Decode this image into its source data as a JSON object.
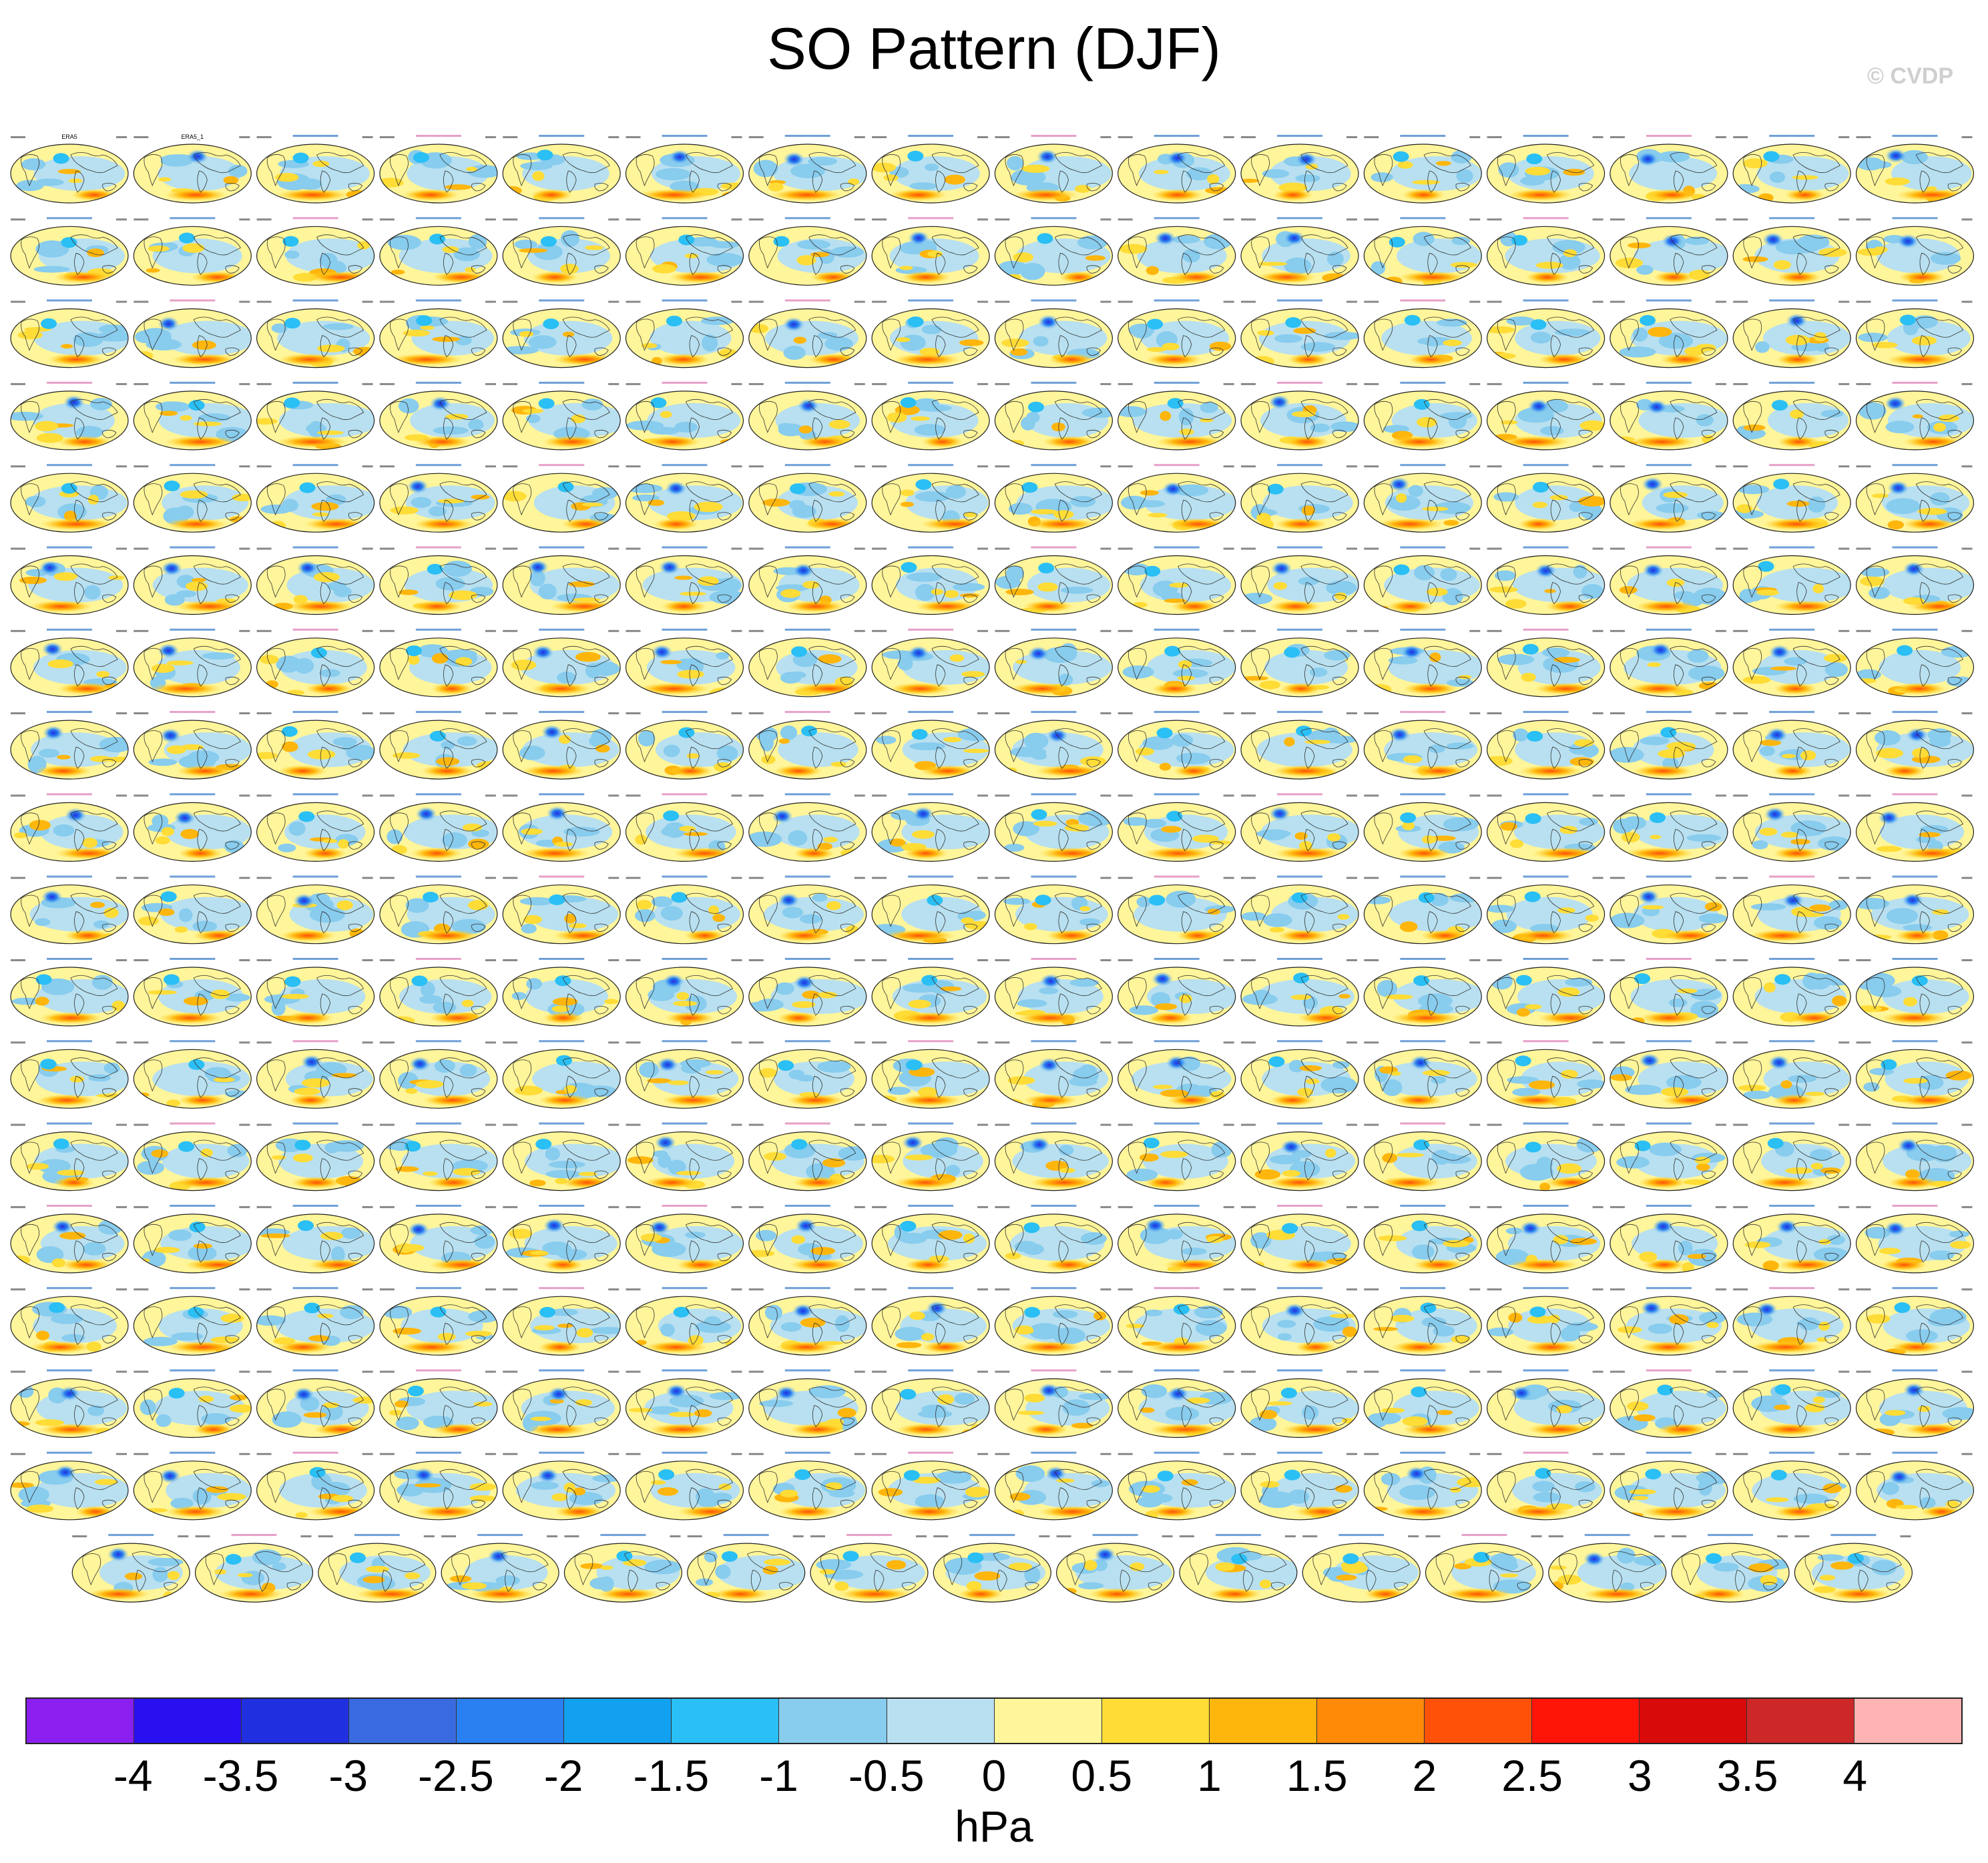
{
  "title": "SO Pattern (DJF)",
  "credit": "© CVDP",
  "colorbar": {
    "units": "hPa",
    "ticks": [
      "-4",
      "-3.5",
      "-3",
      "-2.5",
      "-2",
      "-1.5",
      "-1",
      "-0.5",
      "0",
      "0.5",
      "1",
      "1.5",
      "2",
      "2.5",
      "3",
      "3.5",
      "4"
    ],
    "colors": [
      "#8a1ff0",
      "#2a10f0",
      "#2030e0",
      "#3a6ae0",
      "#2a80f0",
      "#12a0f0",
      "#2abff5",
      "#88ccee",
      "#b8e0f0",
      "#fff59a",
      "#ffdc36",
      "#ffb60c",
      "#ff8a08",
      "#ff5208",
      "#ff1408",
      "#d80a0a",
      "#cc2828",
      "#ffb4b4"
    ]
  },
  "panels": {
    "count": 287,
    "columns": 16,
    "rows_full": 17,
    "last_row_count": 15,
    "first_labels": [
      "ERA5",
      "ERA5_1"
    ]
  }
}
